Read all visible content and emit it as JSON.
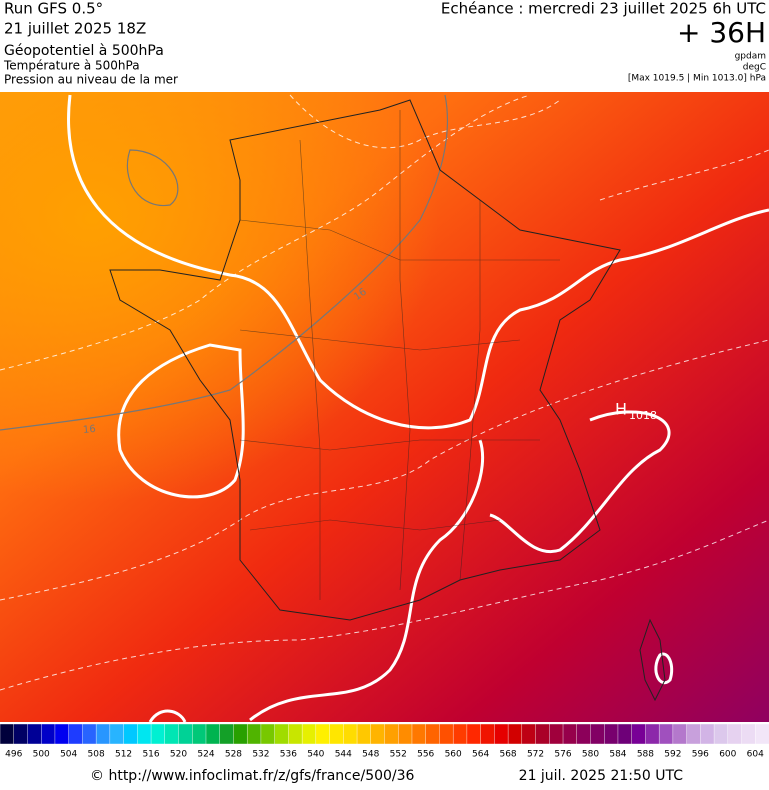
{
  "header": {
    "run": "Run GFS 0.5°",
    "date": "21 juillet 2025 18Z",
    "field": "Géopotentiel à 500hPa",
    "field2": "Température à 500hPa",
    "field3": "Pression au niveau de la mer",
    "valid": "Echéance : mercredi 23 juillet 2025 6h UTC",
    "lead": "+ 36H",
    "unit1": "gpdam",
    "unit2": "degC",
    "range": "[Max 1019.5 | Min 1013.0] hPa"
  },
  "map": {
    "labels": [
      {
        "text": "16"
      },
      {
        "text": "16"
      }
    ],
    "high": {
      "symbol": "H",
      "value": "1018"
    }
  },
  "colorbar": {
    "ticks": [
      496,
      500,
      504,
      508,
      512,
      516,
      520,
      524,
      528,
      532,
      536,
      540,
      544,
      548,
      552,
      556,
      560,
      564,
      568,
      572,
      576,
      580,
      584,
      588,
      592,
      596,
      600,
      604
    ],
    "colors": [
      "#00003c",
      "#000064",
      "#000096",
      "#0000c8",
      "#0000f0",
      "#1e3cff",
      "#2864ff",
      "#2896ff",
      "#28b4ff",
      "#00c8ff",
      "#00e6f0",
      "#00f0d2",
      "#00e6b4",
      "#00d296",
      "#00c878",
      "#00b450",
      "#14a028",
      "#28a000",
      "#50b400",
      "#78c800",
      "#a0dc00",
      "#c8e600",
      "#e6f000",
      "#fff000",
      "#ffe600",
      "#ffdc00",
      "#ffc800",
      "#ffb400",
      "#ffa000",
      "#ff8c00",
      "#ff7800",
      "#ff6400",
      "#ff5000",
      "#ff3c00",
      "#ff2800",
      "#f01400",
      "#e60000",
      "#d20000",
      "#be0014",
      "#aa0028",
      "#a0003c",
      "#96004b",
      "#8c005a",
      "#820064",
      "#78006e",
      "#6e0078",
      "#780096",
      "#8c28aa",
      "#a050be",
      "#b478cc",
      "#c8a0dc",
      "#d2b4e6",
      "#dcc8ec",
      "#e6d2f0",
      "#ecdcf4",
      "#f2e6f8"
    ]
  },
  "footer": {
    "url": "© http://www.infoclimat.fr/z/gfs/france/500/36",
    "stamp": "21 juil. 2025 21:50 UTC"
  }
}
